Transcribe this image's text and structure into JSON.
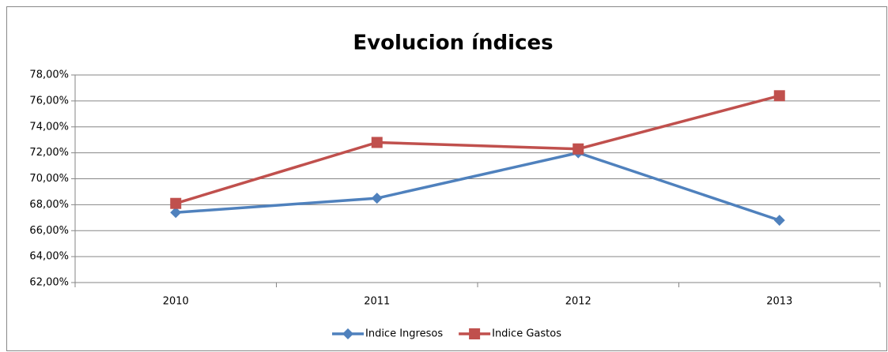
{
  "chart_data": {
    "type": "line",
    "title": "Evolucion índices",
    "categories": [
      "2010",
      "2011",
      "2012",
      "2013"
    ],
    "series": [
      {
        "name": "Indice Ingresos",
        "color": "#4f81bd",
        "marker": "diamond",
        "values": [
          67.4,
          68.5,
          72.0,
          66.8
        ]
      },
      {
        "name": "Indice Gastos",
        "color": "#c0504d",
        "marker": "square",
        "values": [
          68.1,
          72.8,
          72.3,
          76.4
        ]
      }
    ],
    "ylim": [
      62,
      78
    ],
    "yticks": [
      {
        "value": 62,
        "label": "62,00%"
      },
      {
        "value": 64,
        "label": "64,00%"
      },
      {
        "value": 66,
        "label": "66,00%"
      },
      {
        "value": 68,
        "label": "68,00%"
      },
      {
        "value": 70,
        "label": "70,00%"
      },
      {
        "value": 72,
        "label": "72,00%"
      },
      {
        "value": 74,
        "label": "74,00%"
      },
      {
        "value": 76,
        "label": "76,00%"
      },
      {
        "value": 78,
        "label": "78,00%"
      }
    ],
    "grid": true,
    "legend": "bottom"
  }
}
